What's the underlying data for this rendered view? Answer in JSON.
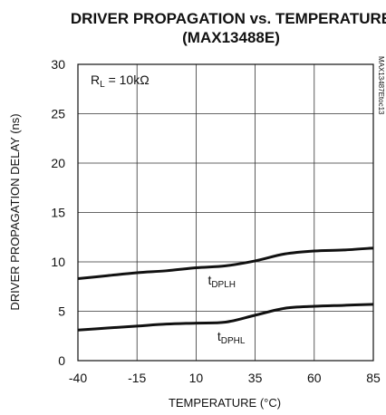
{
  "chart_data": {
    "type": "line",
    "title": "DRIVER PROPAGATION vs. TEMPERATURE",
    "subtitle": "(MAX13488E)",
    "xlabel": "TEMPERATURE (°C)",
    "ylabel": "DRIVER PROPAGATION DELAY (ns)",
    "xlim": [
      -40,
      85
    ],
    "ylim": [
      0,
      30
    ],
    "x_ticks": [
      -40,
      -15,
      10,
      35,
      60,
      85
    ],
    "y_ticks": [
      0,
      5,
      10,
      15,
      20,
      25,
      30
    ],
    "x_tick_labels": [
      "-40",
      "-15",
      "10",
      "35",
      "60",
      "85"
    ],
    "y_tick_labels": [
      "0",
      "5",
      "10",
      "15",
      "20",
      "25",
      "30"
    ],
    "grid": true,
    "annotation": {
      "prefix": "R",
      "sub": "L",
      "suffix": " = 10kΩ"
    },
    "side_code": "MAX13487Etoc13",
    "series": [
      {
        "name": "tDPLH",
        "label_main": "t",
        "label_sub": "DPLH",
        "x": [
          -40,
          -27.5,
          -15,
          -2.5,
          10,
          22.5,
          35,
          47.5,
          60,
          72.5,
          85
        ],
        "values": [
          8.3,
          8.6,
          8.9,
          9.1,
          9.4,
          9.6,
          10.1,
          10.8,
          11.1,
          11.2,
          11.4
        ]
      },
      {
        "name": "tDPHL",
        "label_main": "t",
        "label_sub": "DPHL",
        "x": [
          -40,
          -27.5,
          -15,
          -2.5,
          10,
          22.5,
          35,
          47.5,
          60,
          72.5,
          85
        ],
        "values": [
          3.1,
          3.3,
          3.5,
          3.7,
          3.8,
          3.9,
          4.6,
          5.3,
          5.5,
          5.6,
          5.7
        ]
      }
    ]
  }
}
